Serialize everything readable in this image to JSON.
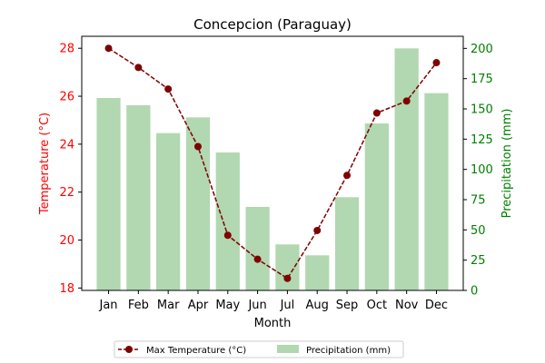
{
  "chart_data": {
    "type": "bar",
    "title": "Concepcion (Paraguay)",
    "xlabel": "Month",
    "categories": [
      "Jan",
      "Feb",
      "Mar",
      "Apr",
      "May",
      "Jun",
      "Jul",
      "Aug",
      "Sep",
      "Oct",
      "Nov",
      "Dec"
    ],
    "series": [
      {
        "name": "Max Temperature (°C)",
        "type": "line",
        "axis": "left",
        "values": [
          28.0,
          27.2,
          26.3,
          23.9,
          20.2,
          19.2,
          18.4,
          20.4,
          22.7,
          25.3,
          25.8,
          27.4
        ],
        "color": "#7f0000"
      },
      {
        "name": "Precipitation (mm)",
        "type": "bar",
        "axis": "right",
        "values": [
          159,
          153,
          130,
          143,
          114,
          69,
          38,
          29,
          77,
          138,
          200,
          163
        ],
        "color": "#b1d8b1"
      }
    ],
    "y_left": {
      "label": "Temperature (°C)",
      "lim": [
        17.9,
        28.5
      ],
      "ticks": [
        18,
        20,
        22,
        24,
        26,
        28
      ],
      "color": "#ff0000"
    },
    "y_right": {
      "label": "Precipitation (mm)",
      "lim": [
        0,
        210
      ],
      "ticks": [
        0,
        25,
        50,
        75,
        100,
        125,
        150,
        175,
        200
      ],
      "color": "#008000"
    },
    "grid": false,
    "legend_position": "bottom-center"
  }
}
